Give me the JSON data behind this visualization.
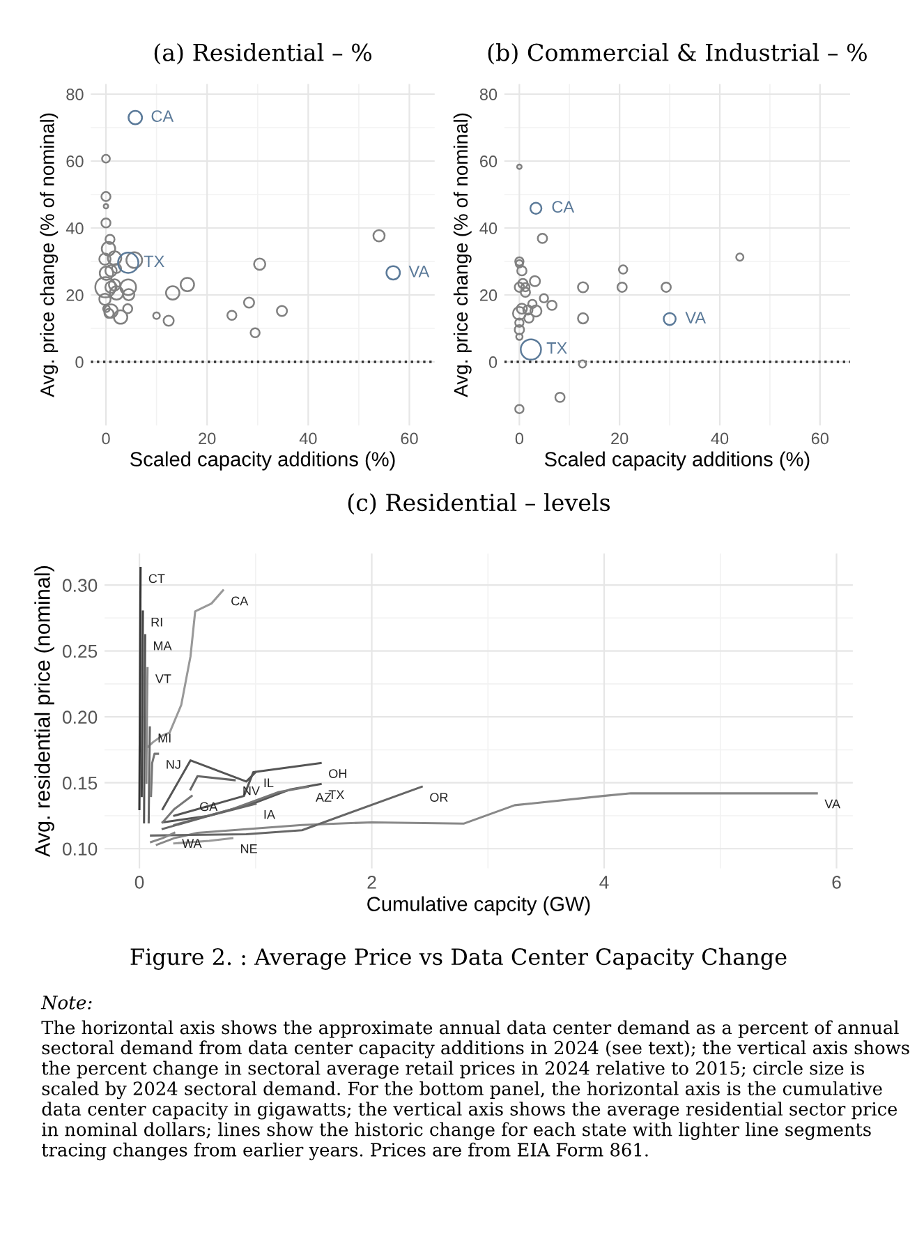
{
  "chart_data": [
    {
      "type": "bubble",
      "title": "(a) Residential – %",
      "xlabel": "Scaled capacity additions (%)",
      "ylabel": "Avg. price change (% of nominal)",
      "xlim": [
        -3,
        65
      ],
      "ylim": [
        -19,
        83
      ],
      "xticks": [
        0,
        20,
        40,
        60
      ],
      "yticks": [
        0,
        20,
        40,
        60,
        80
      ],
      "grid": true,
      "ref_lines": [
        {
          "axis": "y",
          "value": 0,
          "line_style": "dotted",
          "color": "#333333"
        }
      ],
      "series": [
        {
          "color": "#808080",
          "x": [
            0,
            0,
            0,
            0,
            0.8,
            0.5,
            -0.2,
            1.7,
            5.6,
            0.1,
            1,
            2.1,
            -0.1,
            1,
            1.7,
            4.4,
            2.1,
            4.5,
            -0.2,
            0.1,
            1,
            0.6,
            2.9,
            4.3,
            10,
            12.4,
            13.2,
            16.1,
            24.9,
            28.3,
            29.5,
            30.4,
            34.8,
            54
          ],
          "values": [
            60.7,
            49.4,
            46.5,
            41.5,
            36.6,
            33.8,
            30.7,
            31,
            30.4,
            26.5,
            27.2,
            27.9,
            22.3,
            22.3,
            23,
            22.3,
            20.6,
            20.1,
            18.7,
            15.9,
            15.2,
            14.5,
            13.4,
            15.9,
            13.8,
            12.3,
            20.6,
            23.1,
            13.9,
            17.7,
            8.7,
            29.2,
            15.2,
            37.7
          ],
          "sizes": [
            0.15,
            0.2,
            0.05,
            0.2,
            0.2,
            0.44,
            0.31,
            0.44,
            0.6,
            0.44,
            0.31,
            0.2,
            1,
            0.31,
            0.31,
            0.6,
            0.44,
            0.31,
            0.31,
            0.11,
            0.44,
            0.2,
            0.44,
            0.2,
            0.11,
            0.25,
            0.44,
            0.44,
            0.2,
            0.25,
            0.2,
            0.31,
            0.25,
            0.31
          ]
        },
        {
          "color": "#5b7a99",
          "x": [
            5.8,
            4.4,
            56.8
          ],
          "values": [
            73,
            29.6,
            26.6
          ],
          "sizes": [
            0.44,
            1,
            0.44
          ]
        }
      ],
      "annotations": [
        {
          "text": "CA",
          "x": 5.8,
          "y": 73
        },
        {
          "text": "TX",
          "x": 4.4,
          "y": 29.6
        },
        {
          "text": "VA",
          "x": 56.8,
          "y": 26.6
        }
      ]
    },
    {
      "type": "bubble",
      "title": "(b) Commercial & Industrial – %",
      "xlabel": "Scaled capacity additions (%)",
      "ylabel": "Avg. price change (% of nominal)",
      "xlim": [
        -3,
        66
      ],
      "ylim": [
        -19,
        83
      ],
      "xticks": [
        0,
        20,
        40,
        60
      ],
      "yticks": [
        0,
        20,
        40,
        60,
        80
      ],
      "grid": true,
      "ref_lines": [
        {
          "axis": "y",
          "value": 0,
          "line_style": "dotted",
          "color": "#333333"
        }
      ],
      "series": [
        {
          "color": "#808080",
          "x": [
            0,
            4.6,
            0,
            0,
            0.5,
            3.1,
            0.7,
            0,
            1.2,
            12.7,
            20.5,
            29.3,
            20.7,
            44,
            1.2,
            4.9,
            6.5,
            2.6,
            0.5,
            0,
            1.7,
            3.3,
            1.9,
            0,
            0,
            0,
            12.7,
            12.6,
            8.1,
            0
          ],
          "values": [
            58.3,
            36.9,
            30,
            29.3,
            27.2,
            24.1,
            23.4,
            22.3,
            22.3,
            22.3,
            22.3,
            22.3,
            27.6,
            31.3,
            20.8,
            19,
            16.9,
            17.3,
            15.9,
            14.5,
            15.5,
            15.2,
            13.1,
            11.7,
            9.6,
            7.5,
            13,
            -0.6,
            -10.6,
            -14.1
          ],
          "sizes": [
            0.05,
            0.21,
            0.17,
            0.13,
            0.21,
            0.25,
            0.21,
            0.21,
            0.17,
            0.25,
            0.21,
            0.21,
            0.17,
            0.13,
            0.21,
            0.17,
            0.21,
            0.17,
            0.25,
            0.4,
            0.21,
            0.3,
            0.21,
            0.17,
            0.21,
            0.1,
            0.25,
            0.13,
            0.21,
            0.17
          ]
        },
        {
          "color": "#5b7a99",
          "x": [
            3.3,
            30,
            2.3
          ],
          "values": [
            45.9,
            12.8,
            3.7
          ],
          "sizes": [
            0.3,
            0.35,
            1
          ]
        }
      ],
      "annotations": [
        {
          "text": "CA",
          "x": 3.3,
          "y": 45.9
        },
        {
          "text": "VA",
          "x": 30,
          "y": 12.8
        },
        {
          "text": "TX",
          "x": 2.3,
          "y": 3.7
        }
      ]
    },
    {
      "type": "line",
      "title": "(c) Residential – levels",
      "xlabel": "Cumulative capcity (GW)",
      "ylabel": "Avg. residential price (nominal)",
      "xlim": [
        -0.3,
        6.14
      ],
      "ylim": [
        0.085,
        0.324
      ],
      "xticks": [
        0,
        2,
        4,
        6
      ],
      "yticks": [
        {
          "value": 0.1,
          "label": "0.10"
        },
        {
          "value": 0.15,
          "label": "0.15"
        },
        {
          "value": 0.2,
          "label": "0.20"
        },
        {
          "value": 0.25,
          "label": "0.25"
        },
        {
          "value": 0.3,
          "label": "0.30"
        }
      ],
      "grid": true,
      "series": [
        {
          "name": "CA",
          "color": "#999999",
          "x": [
            0.07,
            0.12,
            0.2,
            0.26,
            0.36,
            0.44,
            0.48,
            0.62,
            0.72
          ],
          "values": [
            0.177,
            0.181,
            0.186,
            0.188,
            0.209,
            0.246,
            0.28,
            0.286,
            0.296
          ]
        },
        {
          "name": "CT",
          "color": "#333333",
          "x": [
            0,
            0.005,
            0.01
          ],
          "values": [
            0.13,
            0.22,
            0.313
          ]
        },
        {
          "name": "RI",
          "color": "#444444",
          "x": [
            0.02,
            0.025,
            0.03
          ],
          "values": [
            0.14,
            0.21,
            0.28
          ]
        },
        {
          "name": "MA",
          "color": "#555555",
          "x": [
            0.04,
            0.045,
            0.05
          ],
          "values": [
            0.12,
            0.2,
            0.262
          ]
        },
        {
          "name": "VT",
          "color": "#888888",
          "x": [
            0.06,
            0.065,
            0.07
          ],
          "values": [
            0.15,
            0.2,
            0.237
          ]
        },
        {
          "name": "MI",
          "color": "#666666",
          "x": [
            0.08,
            0.085,
            0.09
          ],
          "values": [
            0.12,
            0.16,
            0.192
          ]
        },
        {
          "name": "NJ",
          "color": "#777777",
          "x": [
            0.1,
            0.11,
            0.13,
            0.16
          ],
          "values": [
            0.14,
            0.165,
            0.172,
            0.172
          ]
        },
        {
          "name": "VA",
          "color": "#888888",
          "x": [
            0.15,
            0.3,
            0.5,
            1.4,
            2,
            2.79,
            3.23,
            3.99,
            4.23,
            5.83
          ],
          "values": [
            0.103,
            0.108,
            0.112,
            0.118,
            0.12,
            0.119,
            0.133,
            0.14,
            0.142,
            0.142
          ]
        },
        {
          "name": "OR",
          "color": "#666666",
          "x": [
            0.1,
            0.92,
            1.4,
            2.43
          ],
          "values": [
            0.11,
            0.111,
            0.114,
            0.147
          ]
        },
        {
          "name": "TX",
          "color": "#555555",
          "x": [
            0.2,
            0.6,
            1,
            1.3,
            1.56
          ],
          "values": [
            0.12,
            0.125,
            0.135,
            0.145,
            0.149
          ]
        },
        {
          "name": "OH",
          "color": "#555555",
          "x": [
            0.3,
            0.9,
            0.98,
            1.56
          ],
          "values": [
            0.125,
            0.14,
            0.158,
            0.165
          ]
        },
        {
          "name": "IL",
          "color": "#555555",
          "x": [
            0.2,
            0.44,
            0.92,
            1.0
          ],
          "values": [
            0.13,
            0.167,
            0.151,
            0.158
          ]
        },
        {
          "name": "NV",
          "color": "#666666",
          "x": [
            0.44,
            0.5,
            0.82
          ],
          "values": [
            0.145,
            0.155,
            0.152
          ]
        },
        {
          "name": "AZ",
          "color": "#777777",
          "x": [
            0.3,
            0.8,
            1.2,
            1.45
          ],
          "values": [
            0.118,
            0.13,
            0.143,
            0.147
          ]
        },
        {
          "name": "IA",
          "color": "#666666",
          "x": [
            0.2,
            0.6,
            1.0
          ],
          "values": [
            0.115,
            0.125,
            0.134
          ]
        },
        {
          "name": "GA",
          "color": "#777777",
          "x": [
            0.2,
            0.3,
            0.45
          ],
          "values": [
            0.12,
            0.13,
            0.14
          ]
        },
        {
          "name": "WA",
          "color": "#888888",
          "x": [
            0.1,
            0.2,
            0.3
          ],
          "values": [
            0.105,
            0.108,
            0.112
          ]
        },
        {
          "name": "NE",
          "color": "#999999",
          "x": [
            0.3,
            0.6,
            0.8
          ],
          "values": [
            0.104,
            0.106,
            0.108
          ]
        }
      ],
      "annotations": [
        "Figure 2. : Average Price vs Data Center Capacity Change",
        "Note:",
        "The horizontal axis shows the approximate annual data center demand as a percent of annual sectoral demand from data center capacity additions in 2024 (see text); the vertical axis shows the percent change in sectoral average retail prices in 2024 relative to 2015; circle size is scaled by 2024 sectoral demand. For the bottom panel, the horizontal axis is the cumulative data center capacity in gigawatts; the vertical axis shows the average residential sector price in nominal dollars; lines show the historic change for each state with lighter line segments tracing changes from earlier years. Prices are from EIA Form 861."
      ]
    }
  ]
}
